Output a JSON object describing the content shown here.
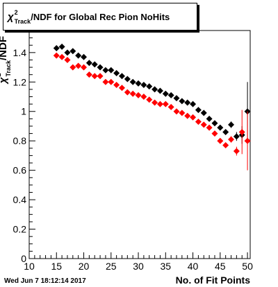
{
  "title": {
    "chi": "χ",
    "sup": "2",
    "sub": "Track",
    "rest": "/NDF for Global Rec Pion NoHits"
  },
  "ylabel": {
    "chi": "χ",
    "sup": "2",
    "sub": "Track",
    "rest": "/NDF"
  },
  "timestamp": "Wed Jun  7 18:12:14 2017",
  "chart_data": {
    "type": "scatter",
    "title": "χ²_Track/NDF for Global Rec Pion NoHits",
    "xlabel": "No. of Fit Points",
    "ylabel": "χ²_Track/NDF",
    "xlim": [
      10,
      50.5
    ],
    "ylim": [
      0,
      1.55
    ],
    "xticks": [
      10,
      15,
      20,
      25,
      30,
      35,
      40,
      45,
      50
    ],
    "yticks": [
      0,
      0.2,
      0.4,
      0.6,
      0.8,
      1,
      1.2,
      1.4
    ],
    "grid": false,
    "series": [
      {
        "color": "#000000",
        "x": [
          15,
          16,
          17,
          18,
          19,
          20,
          21,
          22,
          23,
          24,
          25,
          26,
          27,
          28,
          29,
          30,
          31,
          32,
          33,
          34,
          35,
          36,
          37,
          38,
          39,
          40,
          41,
          42,
          43,
          44,
          45,
          46,
          47,
          48,
          49,
          50
        ],
        "y": [
          1.43,
          1.44,
          1.4,
          1.41,
          1.38,
          1.37,
          1.33,
          1.32,
          1.3,
          1.28,
          1.28,
          1.26,
          1.24,
          1.22,
          1.2,
          1.19,
          1.18,
          1.17,
          1.15,
          1.14,
          1.12,
          1.11,
          1.09,
          1.07,
          1.06,
          1.05,
          1.01,
          0.99,
          0.95,
          0.92,
          0.89,
          0.86,
          0.91,
          0.83,
          0.84,
          1.0
        ],
        "yerr": [
          0.003,
          0.003,
          0.003,
          0.003,
          0.003,
          0.003,
          0.003,
          0.003,
          0.003,
          0.003,
          0.003,
          0.003,
          0.003,
          0.003,
          0.003,
          0.004,
          0.004,
          0.004,
          0.004,
          0.004,
          0.005,
          0.005,
          0.005,
          0.006,
          0.006,
          0.007,
          0.008,
          0.009,
          0.01,
          0.012,
          0.015,
          0.018,
          0.022,
          0.03,
          0.06,
          0.2
        ]
      },
      {
        "color": "#ff0000",
        "x": [
          15,
          16,
          17,
          18,
          19,
          20,
          21,
          22,
          23,
          24,
          25,
          26,
          27,
          28,
          29,
          30,
          31,
          32,
          33,
          34,
          35,
          36,
          37,
          38,
          39,
          40,
          41,
          42,
          43,
          44,
          45,
          46,
          47,
          48,
          49,
          50
        ],
        "y": [
          1.38,
          1.37,
          1.35,
          1.3,
          1.31,
          1.3,
          1.25,
          1.24,
          1.24,
          1.2,
          1.2,
          1.18,
          1.16,
          1.13,
          1.12,
          1.11,
          1.1,
          1.08,
          1.06,
          1.05,
          1.05,
          1.03,
          1.0,
          0.99,
          0.97,
          0.96,
          0.93,
          0.91,
          0.89,
          0.85,
          0.8,
          0.77,
          0.81,
          0.73,
          0.86,
          0.8
        ],
        "yerr": [
          0.003,
          0.003,
          0.003,
          0.003,
          0.003,
          0.003,
          0.003,
          0.003,
          0.003,
          0.003,
          0.003,
          0.003,
          0.003,
          0.003,
          0.003,
          0.004,
          0.004,
          0.004,
          0.004,
          0.004,
          0.005,
          0.005,
          0.005,
          0.006,
          0.006,
          0.007,
          0.008,
          0.009,
          0.01,
          0.012,
          0.015,
          0.018,
          0.022,
          0.03,
          0.15,
          0.2
        ]
      }
    ]
  }
}
